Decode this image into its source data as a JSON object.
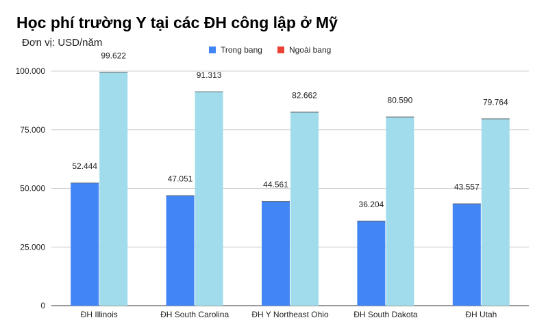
{
  "chart_data": {
    "type": "bar",
    "title": "Học phí trường Y tại các ĐH công lập ở Mỹ",
    "subtitle": "Đơn vị: USD/năm",
    "categories": [
      "ĐH Illinois",
      "ĐH South Carolina",
      "ĐH Y Northeast Ohio",
      "ĐH South Dakota",
      "ĐH Utah"
    ],
    "series": [
      {
        "name": "Trong bang",
        "values": [
          52444,
          47051,
          44561,
          36204,
          43557
        ],
        "labels": [
          "52.444",
          "47.051",
          "44.561",
          "36.204",
          "43.557"
        ],
        "color": "#4285f4"
      },
      {
        "name": "Ngoài bang",
        "values": [
          99622,
          91313,
          82662,
          80590,
          79764
        ],
        "labels": [
          "99.622",
          "91.313",
          "82.662",
          "80.590",
          "79.764"
        ],
        "color": "#a0dcec"
      }
    ],
    "legend_colors": [
      "#4285f4",
      "#ea4335"
    ],
    "ylim": [
      0,
      100000
    ],
    "y_ticks": [
      0,
      25000,
      50000,
      75000,
      100000
    ],
    "y_tick_labels": [
      "0",
      "25.000",
      "50.000",
      "75.000",
      "100.000"
    ],
    "grid": true,
    "legend_position": "top-center"
  }
}
